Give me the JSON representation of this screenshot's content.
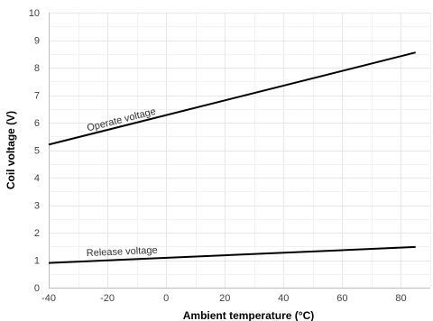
{
  "chart_data": {
    "type": "line",
    "title": "",
    "xlabel": "Ambient temperature (°C)",
    "ylabel": "Coil voltage (V)",
    "xlim": [
      -40,
      90
    ],
    "ylim": [
      0,
      10
    ],
    "x_ticks": [
      -40,
      -20,
      0,
      20,
      40,
      60,
      80
    ],
    "y_ticks": [
      0,
      1,
      2,
      3,
      4,
      5,
      6,
      7,
      8,
      9,
      10
    ],
    "grid": true,
    "legend": "none",
    "series": [
      {
        "name": "Operate voltage",
        "color": "#000000",
        "x": [
          -40,
          85
        ],
        "y": [
          5.2,
          8.55
        ],
        "label_at": {
          "x": -15,
          "y": 6.0,
          "angle_from_slope": true
        }
      },
      {
        "name": "Release voltage",
        "color": "#000000",
        "x": [
          -40,
          85
        ],
        "y": [
          0.9,
          1.48
        ],
        "label_at": {
          "x": -15,
          "y": 1.2,
          "angle_from_slope": true
        }
      }
    ]
  }
}
